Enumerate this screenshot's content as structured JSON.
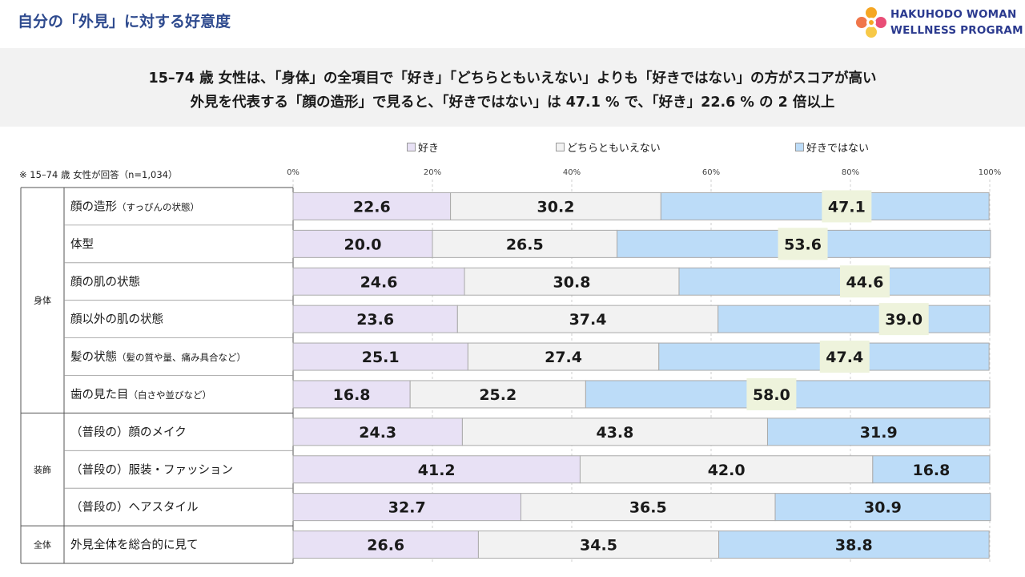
{
  "page_title": "自分の「外見」に対する好意度",
  "logo": {
    "line1": "HAKUHODO WOMAN",
    "line2": "WELLNESS PROGRAM"
  },
  "headline": {
    "line1": "15–74 歳 女性は、「身体」の全項目で「好き」「どちらともいえない」よりも「好きではない」の方がスコアが高い",
    "line2": "外見を代表する「顔の造形」で見ると、「好きではない」は 47.1 % で、「好き」22.6 % の 2 倍以上"
  },
  "note": "※ 15–74 歳 女性が回答（n=1,034）",
  "colors": {
    "like": "#e8e1f5",
    "neutral": "#f2f2f2",
    "dislike": "#bcdcf8",
    "highlight": "#eef3dc",
    "border": "#aaaaaa"
  },
  "chart_data": {
    "type": "bar",
    "orientation": "horizontal-stacked-100",
    "xlim": [
      0,
      100
    ],
    "x_ticks": [
      "0%",
      "20%",
      "40%",
      "60%",
      "80%",
      "100%"
    ],
    "grid": true,
    "legend_placement": "top",
    "series": [
      {
        "name": "好き",
        "color": "#e8e1f5",
        "values": [
          22.6,
          20.0,
          24.6,
          23.6,
          25.1,
          16.8,
          24.3,
          41.2,
          32.7,
          26.6
        ]
      },
      {
        "name": "どちらともいえない",
        "color": "#f2f2f2",
        "values": [
          30.2,
          26.5,
          30.8,
          37.4,
          27.4,
          25.2,
          43.8,
          42.0,
          36.5,
          34.5
        ]
      },
      {
        "name": "好きではない",
        "color": "#bcdcf8",
        "values": [
          47.1,
          53.6,
          44.6,
          39.0,
          47.4,
          58.0,
          31.9,
          16.8,
          30.9,
          38.8
        ]
      }
    ],
    "highlighted": [
      true,
      true,
      true,
      true,
      true,
      true,
      false,
      false,
      false,
      false
    ],
    "rows": [
      {
        "main": "顔の造形",
        "sub": "（すっぴんの状態）",
        "group": "身体"
      },
      {
        "main": "体型",
        "sub": "",
        "group": "身体"
      },
      {
        "main": "顔の肌の状態",
        "sub": "",
        "group": "身体"
      },
      {
        "main": "顔以外の肌の状態",
        "sub": "",
        "group": "身体"
      },
      {
        "main": "髪の状態",
        "sub": "（髪の質や量、痛み具合など）",
        "group": "身体"
      },
      {
        "main": "歯の見た目",
        "sub": "（白さや並びなど）",
        "group": "身体"
      },
      {
        "main": "（普段の）顔のメイク",
        "sub": "",
        "group": "装飾"
      },
      {
        "main": "（普段の）服装・ファッション",
        "sub": "",
        "group": "装飾"
      },
      {
        "main": "（普段の）ヘアスタイル",
        "sub": "",
        "group": "装飾"
      },
      {
        "main": "外見全体を総合的に見て",
        "sub": "",
        "group": "全体"
      }
    ],
    "groups": [
      {
        "name": "身体",
        "rows": 6
      },
      {
        "name": "装飾",
        "rows": 3
      },
      {
        "name": "全体",
        "rows": 1
      }
    ]
  }
}
